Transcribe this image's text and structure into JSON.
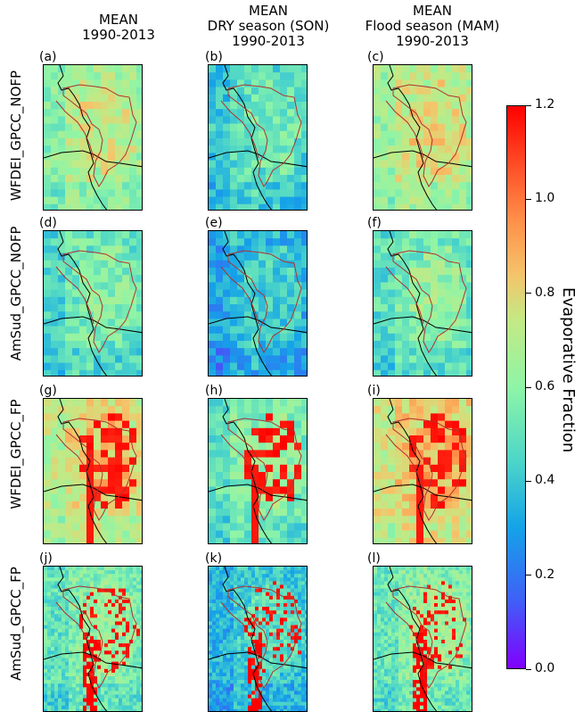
{
  "columns": [
    {
      "line1": "MEAN",
      "line2": "1990-2013",
      "line3": ""
    },
    {
      "line1": "MEAN",
      "line2": "DRY season (SON)",
      "line3": "1990-2013"
    },
    {
      "line1": "MEAN",
      "line2": "Flood season (MAM)",
      "line3": "1990-2013"
    }
  ],
  "rows": [
    "WFDEI_GPCC_NOFP",
    "AmSud_GPCC_NOFP",
    "WFDEI_GPCC_FP",
    "AmSud_GPCC_FP"
  ],
  "panel_letters": [
    "(a)",
    "(b)",
    "(c)",
    "(d)",
    "(e)",
    "(f)",
    "(g)",
    "(h)",
    "(i)",
    "(j)",
    "(k)",
    "(l)"
  ],
  "colorbar": {
    "label": "Evaporative Fraction",
    "ticks": [
      "0.0",
      "0.2",
      "0.4",
      "0.6",
      "0.8",
      "1.0",
      "1.2"
    ],
    "colors": {
      "low": "#8000ff",
      "mid": "#8ef5a6",
      "high": "#ff0000"
    }
  },
  "chart_data": {
    "type": "heatmap",
    "range": [
      0,
      1.2
    ],
    "colormap": "rainbow",
    "panels": [
      {
        "letter": "(a)",
        "row": "WFDEI_GPCC_NOFP",
        "column": "MEAN 1990-2013",
        "typical_value": 0.7
      },
      {
        "letter": "(b)",
        "row": "WFDEI_GPCC_NOFP",
        "column": "MEAN DRY season (SON) 1990-2013",
        "typical_value": 0.5
      },
      {
        "letter": "(c)",
        "row": "WFDEI_GPCC_NOFP",
        "column": "MEAN Flood season (MAM) 1990-2013",
        "typical_value": 0.75
      },
      {
        "letter": "(d)",
        "row": "AmSud_GPCC_NOFP",
        "column": "MEAN 1990-2013",
        "typical_value": 0.55
      },
      {
        "letter": "(e)",
        "row": "AmSud_GPCC_NOFP",
        "column": "MEAN DRY season (SON) 1990-2013",
        "typical_value": 0.4
      },
      {
        "letter": "(f)",
        "row": "AmSud_GPCC_NOFP",
        "column": "MEAN Flood season (MAM) 1990-2013",
        "typical_value": 0.58
      },
      {
        "letter": "(g)",
        "row": "WFDEI_GPCC_FP",
        "column": "MEAN 1990-2013",
        "typical_value": 0.8
      },
      {
        "letter": "(h)",
        "row": "WFDEI_GPCC_FP",
        "column": "MEAN DRY season (SON) 1990-2013",
        "typical_value": 0.6
      },
      {
        "letter": "(i)",
        "row": "WFDEI_GPCC_FP",
        "column": "MEAN Flood season (MAM) 1990-2013",
        "typical_value": 0.85
      },
      {
        "letter": "(j)",
        "row": "AmSud_GPCC_FP",
        "column": "MEAN 1990-2013",
        "typical_value": 0.6
      },
      {
        "letter": "(k)",
        "row": "AmSud_GPCC_FP",
        "column": "MEAN DRY season (SON) 1990-2013",
        "typical_value": 0.45
      },
      {
        "letter": "(l)",
        "row": "AmSud_GPCC_FP",
        "column": "MEAN Flood season (MAM) 1990-2013",
        "typical_value": 0.62
      }
    ]
  }
}
